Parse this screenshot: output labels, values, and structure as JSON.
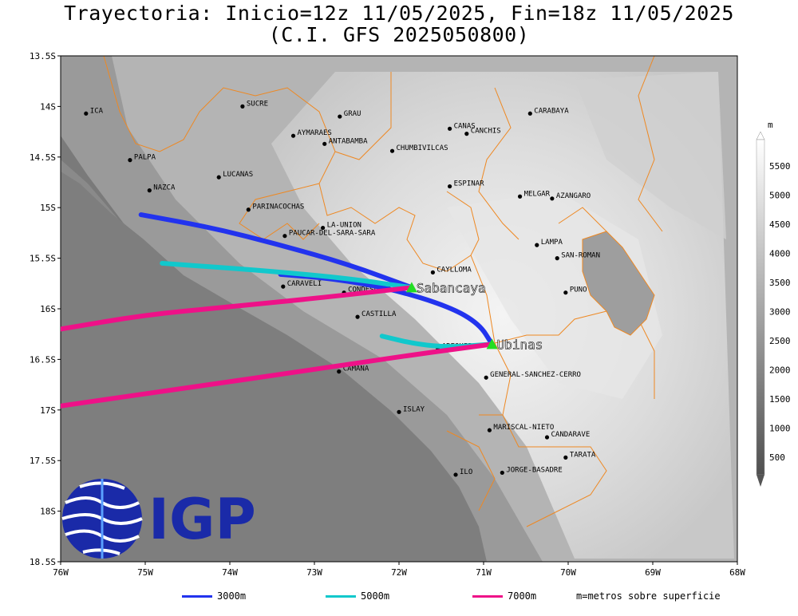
{
  "title_line1": "Trayectoria: Inicio=12z 11/05/2025, Fin=18z 11/05/2025",
  "title_line2": "(C.I. GFS 2025050800)",
  "map": {
    "lon_range": [
      -76,
      -68
    ],
    "lat_range": [
      -18.5,
      -13.5
    ],
    "x_ticks": [
      "76W",
      "75W",
      "74W",
      "73W",
      "72W",
      "71W",
      "70W",
      "69W",
      "68W"
    ],
    "y_ticks": [
      "13.5S",
      "14S",
      "14.5S",
      "15S",
      "15.5S",
      "16S",
      "16.5S",
      "17S",
      "17.5S",
      "18S",
      "18.5S"
    ],
    "colors": {
      "traj_3000": "#2233ee",
      "traj_5000": "#11c8cc",
      "traj_7000": "#ee1188",
      "volcano": "#22dd22",
      "border": "#ee8822"
    }
  },
  "places": [
    {
      "name": "ICA",
      "lon": -75.7,
      "lat": -14.07
    },
    {
      "name": "SUCRE",
      "lon": -73.85,
      "lat": -14.0
    },
    {
      "name": "GRAU",
      "lon": -72.7,
      "lat": -14.1
    },
    {
      "name": "CANAS",
      "lon": -71.4,
      "lat": -14.22
    },
    {
      "name": "CANCHIS",
      "lon": -71.2,
      "lat": -14.27
    },
    {
      "name": "CARABAYA",
      "lon": -70.45,
      "lat": -14.07
    },
    {
      "name": "AYMARAES",
      "lon": -73.25,
      "lat": -14.29
    },
    {
      "name": "ANTABAMBA",
      "lon": -72.88,
      "lat": -14.37
    },
    {
      "name": "CHUMBIVILCAS",
      "lon": -72.08,
      "lat": -14.44
    },
    {
      "name": "PALPA",
      "lon": -75.18,
      "lat": -14.53
    },
    {
      "name": "LUCANAS",
      "lon": -74.13,
      "lat": -14.7
    },
    {
      "name": "NAZCA",
      "lon": -74.95,
      "lat": -14.83
    },
    {
      "name": "ESPINAR",
      "lon": -71.4,
      "lat": -14.79
    },
    {
      "name": "MELGAR",
      "lon": -70.57,
      "lat": -14.89
    },
    {
      "name": "AZANGARO",
      "lon": -70.19,
      "lat": -14.91
    },
    {
      "name": "PARINACOCHAS",
      "lon": -73.78,
      "lat": -15.02
    },
    {
      "name": "LA-UNION",
      "lon": -72.9,
      "lat": -15.2
    },
    {
      "name": "PAUCAR-DEL-SARA-SARA",
      "lon": -73.35,
      "lat": -15.28
    },
    {
      "name": "LAMPA",
      "lon": -70.37,
      "lat": -15.37
    },
    {
      "name": "SAN-ROMAN",
      "lon": -70.13,
      "lat": -15.5
    },
    {
      "name": "CAYLLOMA",
      "lon": -71.6,
      "lat": -15.64
    },
    {
      "name": "CARAVELI",
      "lon": -73.37,
      "lat": -15.78
    },
    {
      "name": "CONDESUYOS",
      "lon": -72.65,
      "lat": -15.84
    },
    {
      "name": "PUNO",
      "lon": -70.03,
      "lat": -15.84
    },
    {
      "name": "CASTILLA",
      "lon": -72.49,
      "lat": -16.08
    },
    {
      "name": "AREQUIPA",
      "lon": -71.54,
      "lat": -16.4
    },
    {
      "name": "CAMANA",
      "lon": -72.71,
      "lat": -16.62
    },
    {
      "name": "GENERAL-SANCHEZ-CERRO",
      "lon": -70.97,
      "lat": -16.68
    },
    {
      "name": "ISLAY",
      "lon": -72.0,
      "lat": -17.02
    },
    {
      "name": "MARISCAL-NIETO",
      "lon": -70.93,
      "lat": -17.2
    },
    {
      "name": "CANDARAVE",
      "lon": -70.25,
      "lat": -17.27
    },
    {
      "name": "TARATA",
      "lon": -70.03,
      "lat": -17.47
    },
    {
      "name": "ILO",
      "lon": -71.33,
      "lat": -17.64
    },
    {
      "name": "JORGE-BASADRE",
      "lon": -70.78,
      "lat": -17.62
    }
  ],
  "volcanoes": [
    {
      "name": "Sabancaya",
      "lon": -71.85,
      "lat": -15.79
    },
    {
      "name": "Ubinas",
      "lon": -70.9,
      "lat": -16.35
    }
  ],
  "trajectories": [
    {
      "level": "3000m",
      "color": "#2233ee",
      "points": [
        [
          -71.85,
          -15.79
        ],
        [
          -72.6,
          -15.56
        ],
        [
          -73.4,
          -15.37
        ],
        [
          -74.2,
          -15.2
        ],
        [
          -75.05,
          -15.07
        ]
      ]
    },
    {
      "level": "3000m",
      "color": "#2233ee",
      "points": [
        [
          -70.9,
          -16.35
        ],
        [
          -71.05,
          -16.15
        ],
        [
          -71.4,
          -15.98
        ],
        [
          -72.1,
          -15.8
        ],
        [
          -72.8,
          -15.7
        ],
        [
          -73.4,
          -15.66
        ]
      ]
    },
    {
      "level": "5000m",
      "color": "#11c8cc",
      "points": [
        [
          -71.85,
          -15.79
        ],
        [
          -72.6,
          -15.7
        ],
        [
          -73.5,
          -15.63
        ],
        [
          -74.3,
          -15.58
        ],
        [
          -74.8,
          -15.55
        ]
      ]
    },
    {
      "level": "5000m",
      "color": "#11c8cc",
      "points": [
        [
          -70.9,
          -16.35
        ],
        [
          -71.4,
          -16.38
        ],
        [
          -71.8,
          -16.35
        ],
        [
          -72.2,
          -16.27
        ]
      ]
    },
    {
      "level": "7000m",
      "color": "#ee1188",
      "points": [
        [
          -71.85,
          -15.79
        ],
        [
          -72.8,
          -15.88
        ],
        [
          -74.0,
          -15.98
        ],
        [
          -75.0,
          -16.06
        ],
        [
          -76.0,
          -16.2
        ]
      ]
    },
    {
      "level": "7000m",
      "color": "#ee1188",
      "points": [
        [
          -70.9,
          -16.35
        ],
        [
          -71.8,
          -16.45
        ],
        [
          -73.0,
          -16.6
        ],
        [
          -74.5,
          -16.78
        ],
        [
          -76.0,
          -16.96
        ]
      ]
    }
  ],
  "colorbar": {
    "unit": "m",
    "labels": [
      "500",
      "1000",
      "1500",
      "2000",
      "2500",
      "3000",
      "3500",
      "4000",
      "4500",
      "5000",
      "5500"
    ]
  },
  "legend": {
    "items": [
      {
        "label": "3000m",
        "color": "#2233ee"
      },
      {
        "label": "5000m",
        "color": "#11c8cc"
      },
      {
        "label": "7000m",
        "color": "#ee1188"
      }
    ],
    "note": "m=metros sobre superficie"
  },
  "logo": {
    "text": "IGP",
    "color": "#1a2aa8"
  }
}
